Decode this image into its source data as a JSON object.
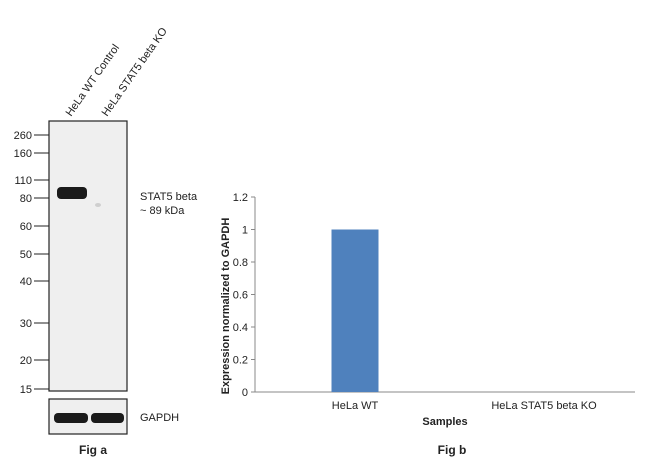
{
  "western_blot": {
    "lanes": [
      "HeLa WT Control",
      "HeLa STAT5 beta KO"
    ],
    "markers": [
      "260",
      "160",
      "110",
      "80",
      "60",
      "50",
      "40",
      "30",
      "20",
      "15"
    ],
    "target_label_line1": "STAT5 beta",
    "target_label_line2": "~  89 kDa",
    "loading_control": "GAPDH",
    "caption": "Fig a"
  },
  "chart_data": {
    "type": "bar",
    "categories": [
      "HeLa WT",
      "HeLa STAT5 beta  KO"
    ],
    "values": [
      1.0,
      0.0
    ],
    "ylabel": "Expression  normalized to GAPDH",
    "xlabel": "Samples",
    "ylim": [
      0,
      1.2
    ],
    "yticks": [
      "0",
      "0.2",
      "0.4",
      "0.6",
      "0.8",
      "1",
      "1.2"
    ],
    "bar_color": "#4f81bd",
    "caption": "Fig b"
  }
}
